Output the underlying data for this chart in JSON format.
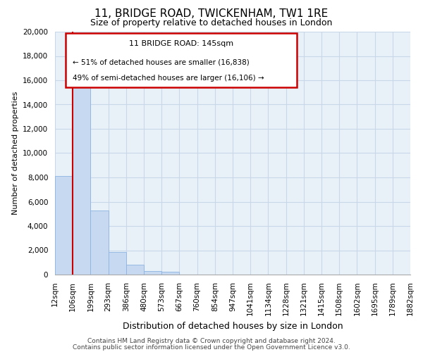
{
  "title_line1": "11, BRIDGE ROAD, TWICKENHAM, TW1 1RE",
  "title_line2": "Size of property relative to detached houses in London",
  "xlabel": "Distribution of detached houses by size in London",
  "ylabel": "Number of detached properties",
  "bar_color": "#c6d9f0",
  "bar_edge_color": "#8db3e2",
  "marker_line_color": "#cc0000",
  "annotation_title": "11 BRIDGE ROAD: 145sqm",
  "annotation_line1": "← 51% of detached houses are smaller (16,838)",
  "annotation_line2": "49% of semi-detached houses are larger (16,106) →",
  "annotation_box_edge": "#cc0000",
  "ylim": [
    0,
    20000
  ],
  "yticks": [
    0,
    2000,
    4000,
    6000,
    8000,
    10000,
    12000,
    14000,
    16000,
    18000,
    20000
  ],
  "bin_labels": [
    "12sqm",
    "106sqm",
    "199sqm",
    "293sqm",
    "386sqm",
    "480sqm",
    "573sqm",
    "667sqm",
    "760sqm",
    "854sqm",
    "947sqm",
    "1041sqm",
    "1134sqm",
    "1228sqm",
    "1321sqm",
    "1415sqm",
    "1508sqm",
    "1602sqm",
    "1695sqm",
    "1789sqm",
    "1882sqm"
  ],
  "bar_heights": [
    8100,
    16600,
    5300,
    1850,
    800,
    310,
    240,
    0,
    0,
    0,
    0,
    0,
    0,
    0,
    0,
    0,
    0,
    0,
    0,
    0
  ],
  "footer_line1": "Contains HM Land Registry data © Crown copyright and database right 2024.",
  "footer_line2": "Contains public sector information licensed under the Open Government Licence v3.0.",
  "bg_color": "#ffffff",
  "plot_bg_color": "#e8f0f8",
  "grid_color": "#c8d8e8",
  "title_fontsize": 11,
  "subtitle_fontsize": 9,
  "ylabel_fontsize": 8,
  "xlabel_fontsize": 9,
  "tick_fontsize": 7.5,
  "footer_fontsize": 6.5
}
